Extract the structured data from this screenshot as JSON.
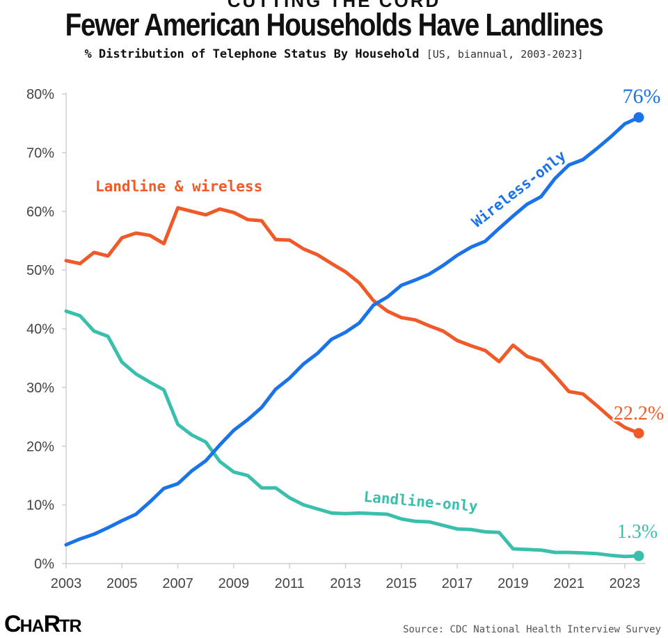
{
  "kicker": "CUTTING THE CORD",
  "title": "Fewer American Households Have Landlines",
  "subtitle": {
    "main": "% Distribution of Telephone Status By Household",
    "note": "[US, biannual, 2003-2023]"
  },
  "logo": {
    "big1": "C",
    "small1": "HA",
    "big2": "R",
    "small2": "TR"
  },
  "source": "Source: CDC National Health Interview Survey",
  "chart_data": {
    "type": "line",
    "ylim": [
      0,
      80
    ],
    "xlim": [
      2003,
      2024
    ],
    "y_ticks": [
      {
        "value": 0,
        "label": "0%"
      },
      {
        "value": 10,
        "label": "10%"
      },
      {
        "value": 20,
        "label": "20%"
      },
      {
        "value": 30,
        "label": "30%"
      },
      {
        "value": 40,
        "label": "40%"
      },
      {
        "value": 50,
        "label": "50%"
      },
      {
        "value": 60,
        "label": "60%"
      },
      {
        "value": 70,
        "label": "70%"
      },
      {
        "value": 80,
        "label": "80%"
      }
    ],
    "x_ticks": [
      {
        "value": 2003,
        "label": "2003"
      },
      {
        "value": 2005,
        "label": "2005"
      },
      {
        "value": 2007,
        "label": "2007"
      },
      {
        "value": 2009,
        "label": "2009"
      },
      {
        "value": 2011,
        "label": "2011"
      },
      {
        "value": 2013,
        "label": "2013"
      },
      {
        "value": 2015,
        "label": "2015"
      },
      {
        "value": 2017,
        "label": "2017"
      },
      {
        "value": 2019,
        "label": "2019"
      },
      {
        "value": 2021,
        "label": "2021"
      },
      {
        "value": 2023,
        "label": "2023"
      }
    ],
    "x": [
      2003,
      2003.5,
      2004,
      2004.5,
      2005,
      2005.5,
      2006,
      2006.5,
      2007,
      2007.5,
      2008,
      2008.5,
      2009,
      2009.5,
      2010,
      2010.5,
      2011,
      2011.5,
      2012,
      2012.5,
      2013,
      2013.5,
      2014,
      2014.5,
      2015,
      2015.5,
      2016,
      2016.5,
      2017,
      2017.5,
      2018,
      2018.5,
      2019,
      2019.5,
      2020,
      2020.5,
      2021,
      2021.5,
      2022,
      2022.5,
      2023,
      2023.5
    ],
    "series": [
      {
        "name": "Wireless-only",
        "color": "#1a73e8",
        "values": [
          3.2,
          4.2,
          5.0,
          6.1,
          7.3,
          8.4,
          10.5,
          12.8,
          13.6,
          15.8,
          17.5,
          20.2,
          22.7,
          24.5,
          26.6,
          29.7,
          31.6,
          34.0,
          35.8,
          38.2,
          39.4,
          41.0,
          44.0,
          45.4,
          47.4,
          48.3,
          49.3,
          50.8,
          52.5,
          53.9,
          54.9,
          57.1,
          59.2,
          61.2,
          62.5,
          65.6,
          67.9,
          68.8,
          70.7,
          72.7,
          74.9,
          76.0
        ],
        "end_label": "76%",
        "line_label": "Wireless-only"
      },
      {
        "name": "Landline & wireless",
        "color": "#f05a28",
        "values": [
          51.6,
          51.1,
          53.0,
          52.4,
          55.5,
          56.3,
          55.9,
          54.5,
          60.6,
          60.0,
          59.4,
          60.4,
          59.8,
          58.6,
          58.4,
          55.2,
          55.1,
          53.6,
          52.6,
          51.1,
          49.7,
          47.8,
          44.8,
          43.0,
          41.9,
          41.5,
          40.5,
          39.6,
          38.0,
          37.1,
          36.3,
          34.4,
          37.2,
          35.3,
          34.5,
          32.0,
          29.3,
          28.9,
          26.9,
          24.8,
          23.2,
          22.2
        ],
        "end_label": "22.2%",
        "line_label": "Landline & wireless"
      },
      {
        "name": "Landline-only",
        "color": "#3bbfad",
        "values": [
          43.0,
          42.2,
          39.6,
          38.7,
          34.3,
          32.3,
          30.9,
          29.6,
          23.7,
          21.9,
          20.7,
          17.4,
          15.6,
          15.0,
          12.9,
          12.9,
          11.2,
          10.0,
          9.3,
          8.6,
          8.5,
          8.6,
          8.5,
          8.4,
          7.6,
          7.2,
          7.1,
          6.5,
          5.9,
          5.8,
          5.4,
          5.3,
          2.5,
          2.4,
          2.3,
          1.9,
          1.9,
          1.8,
          1.7,
          1.4,
          1.2,
          1.3
        ],
        "end_label": "1.3%",
        "line_label": "Landline-only"
      }
    ]
  }
}
